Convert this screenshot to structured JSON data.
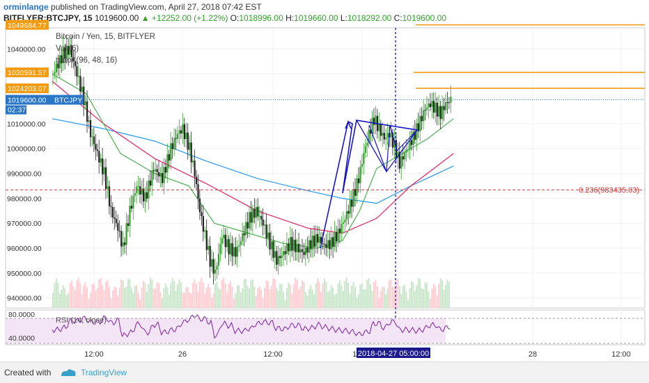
{
  "header": {
    "author": "orminlange",
    "published": "published on TradingView.com, April 27, 2018 07:42 EST",
    "symbol": "BITFLYER:BTCJPY, 15",
    "price": "1019600.00",
    "change": "▲ +12252.00 (+1.22%)",
    "o_label": "O:",
    "o_value": "1018996.00",
    "h_label": "H:",
    "h_value": "1019660.00",
    "l_label": "L:",
    "l_value": "1018292.00",
    "c_label": "C:",
    "c_value": "1019600.00"
  },
  "legend": {
    "title": "Bitcoin / Yen, 15, BITFLYER",
    "vol": "Vol (6)",
    "alligator": "gator (96, 48, 16)"
  },
  "price_tags": {
    "top": "1049684.77",
    "level2": "1030591.57",
    "level3": "1024203.07",
    "current": "1019600.00",
    "symbol": "BTCJPY",
    "timer": "02:37"
  },
  "fib_label": "0.236(983435.03)",
  "rsi_label": "RSI (14, close)",
  "crosshair_time": "2018-04-27 05:00:00",
  "footer": {
    "created": "Created with",
    "brand": "TradingView"
  },
  "colors": {
    "up": "#33a02c",
    "down": "#222222",
    "orange": "#f39c12",
    "blue_line": "#1515c8",
    "lips": "#4caf50",
    "teeth": "#e91e63",
    "jaw": "#2196f3",
    "rsi": "#7b1fa2",
    "rsi_band": "#f3e5f5",
    "fib": "#d32f2f"
  },
  "chart_data": {
    "type": "candlestick",
    "title": "Bitcoin / Yen, 15, BITFLYER",
    "y_ticks": [
      1040000.0,
      1030000.0,
      1020000.0,
      1010000.0,
      1000000.0,
      990000.0,
      980000.0,
      970000.0,
      960000.0,
      950000.0,
      940000.0
    ],
    "y_tick_labels": [
      "1040000.00",
      "1030000.00",
      "1020000.00",
      "1010000.00",
      "1000000.00",
      "990000.00",
      "980000.00",
      "970000.00",
      "960000.00",
      "950000.00",
      "940000.00"
    ],
    "ylim": [
      936000,
      1048500
    ],
    "x_labels": [
      "12:00",
      "26",
      "12:00",
      "12:00",
      "28",
      "12:00"
    ],
    "rsi_ticks": [
      "80.0000",
      "40.0000"
    ],
    "rsi_levels": [
      70,
      30
    ],
    "resistance_levels": [
      1049684.77,
      1030591.57,
      1024203.07
    ],
    "fib_level": 983435.03,
    "current_price": 1019600.0,
    "close_path": [
      [
        0,
        1030000
      ],
      [
        12,
        1038000
      ],
      [
        20,
        1040000
      ],
      [
        28,
        1030000
      ],
      [
        36,
        1020000
      ],
      [
        44,
        1006000
      ],
      [
        52,
        998000
      ],
      [
        60,
        990000
      ],
      [
        68,
        975000
      ],
      [
        76,
        968000
      ],
      [
        82,
        960000
      ],
      [
        90,
        975000
      ],
      [
        98,
        985000
      ],
      [
        108,
        980000
      ],
      [
        118,
        992000
      ],
      [
        128,
        988000
      ],
      [
        138,
        1000000
      ],
      [
        146,
        1006000
      ],
      [
        152,
        1008000
      ],
      [
        160,
        1000000
      ],
      [
        166,
        990000
      ],
      [
        172,
        975000
      ],
      [
        178,
        965000
      ],
      [
        184,
        955000
      ],
      [
        190,
        950000
      ],
      [
        198,
        965000
      ],
      [
        206,
        960000
      ],
      [
        214,
        958000
      ],
      [
        222,
        965000
      ],
      [
        230,
        972000
      ],
      [
        238,
        975000
      ],
      [
        246,
        970000
      ],
      [
        254,
        962000
      ],
      [
        262,
        955000
      ],
      [
        270,
        958000
      ],
      [
        278,
        962000
      ],
      [
        286,
        960000
      ],
      [
        294,
        958000
      ],
      [
        302,
        962000
      ],
      [
        310,
        964000
      ],
      [
        318,
        961000
      ],
      [
        326,
        962000
      ],
      [
        334,
        966000
      ],
      [
        342,
        972000
      ],
      [
        350,
        979000
      ],
      [
        358,
        988000
      ],
      [
        364,
        998000
      ],
      [
        370,
        1006000
      ],
      [
        376,
        1012000
      ],
      [
        382,
        1008000
      ],
      [
        388,
        1004000
      ],
      [
        394,
        1006000
      ],
      [
        400,
        1001000
      ],
      [
        406,
        994000
      ],
      [
        412,
        998000
      ],
      [
        418,
        1002000
      ],
      [
        424,
        1006000
      ],
      [
        430,
        1011000
      ],
      [
        436,
        1016000
      ],
      [
        442,
        1018000
      ],
      [
        448,
        1016000
      ],
      [
        454,
        1014000
      ],
      [
        460,
        1018000
      ],
      [
        466,
        1019600
      ]
    ],
    "lips_path": [
      [
        0,
        1030000
      ],
      [
        40,
        1022000
      ],
      [
        80,
        998000
      ],
      [
        120,
        990000
      ],
      [
        160,
        985000
      ],
      [
        190,
        970000
      ],
      [
        230,
        966000
      ],
      [
        270,
        962000
      ],
      [
        310,
        960000
      ],
      [
        340,
        963000
      ],
      [
        360,
        975000
      ],
      [
        380,
        992000
      ],
      [
        410,
        998000
      ],
      [
        440,
        1004000
      ],
      [
        470,
        1012000
      ]
    ],
    "teeth_path": [
      [
        0,
        1027000
      ],
      [
        60,
        1010000
      ],
      [
        120,
        996000
      ],
      [
        180,
        986000
      ],
      [
        240,
        975000
      ],
      [
        300,
        968000
      ],
      [
        340,
        966000
      ],
      [
        380,
        972000
      ],
      [
        420,
        985000
      ],
      [
        470,
        998000
      ]
    ],
    "jaw_path": [
      [
        0,
        1012000
      ],
      [
        60,
        1008000
      ],
      [
        120,
        1003000
      ],
      [
        180,
        995000
      ],
      [
        240,
        988000
      ],
      [
        300,
        983000
      ],
      [
        340,
        980000
      ],
      [
        380,
        978000
      ],
      [
        420,
        985000
      ],
      [
        470,
        993000
      ]
    ]
  }
}
